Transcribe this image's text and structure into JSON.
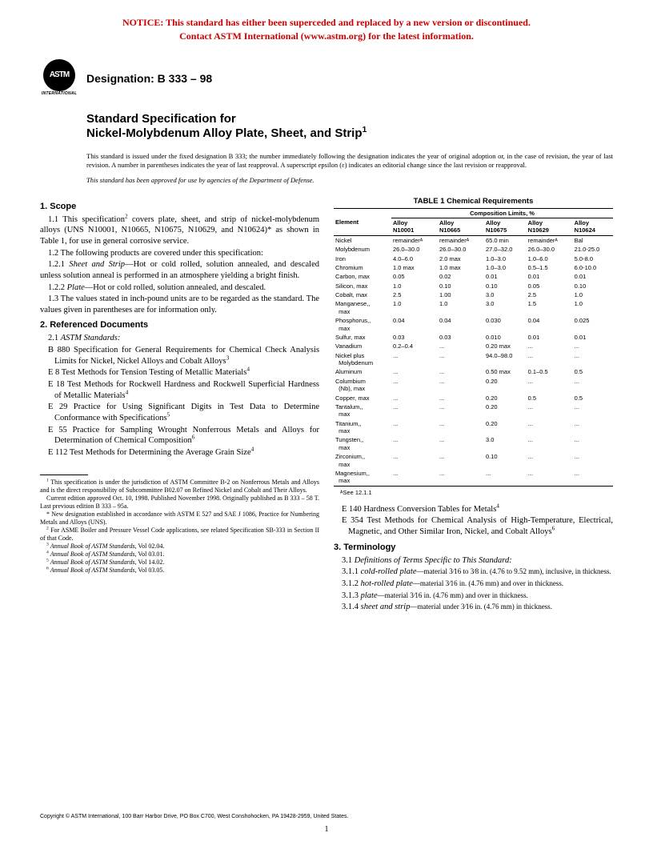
{
  "notice": {
    "line1": "NOTICE: This standard has either been superceded and replaced by a new version or discontinued.",
    "line2": "Contact ASTM International (www.astm.org) for the latest information."
  },
  "logo": {
    "abbr": "ASTM",
    "subtext": "INTERNATIONAL"
  },
  "designation": "Designation: B 333 – 98",
  "title": {
    "lead": "Standard Specification for",
    "main": "Nickel-Molybdenum Alloy Plate, Sheet, and Strip",
    "sup": "1"
  },
  "issuance": "This standard is issued under the fixed designation B 333; the number immediately following the designation indicates the year of original adoption or, in the case of revision, the year of last revision. A number in parentheses indicates the year of last reapproval. A superscript epsilon (ε) indicates an editorial change since the last revision or reapproval.",
  "dod": "This standard has been approved for use by agencies of the Department of Defense.",
  "left": {
    "s1_head": "1.  Scope",
    "s1_1a": "1.1 This specification",
    "s1_1_sup": "2",
    "s1_1b": " covers plate, sheet, and strip of nickel-molybdenum alloys (UNS N10001, N10665, N10675, N10629, and N10624)* as shown in Table 1, for use in general corrosive service.",
    "s1_2": "1.2 The following products are covered under this specification:",
    "s1_2_1_lead": "1.2.1 ",
    "s1_2_1_em": "Sheet and Strip",
    "s1_2_1_body": "—Hot or cold rolled, solution annealed, and descaled unless solution anneal is performed in an atmosphere yielding a bright finish.",
    "s1_2_2_lead": "1.2.2 ",
    "s1_2_2_em": "Plate",
    "s1_2_2_body": "—Hot or cold rolled, solution annealed, and descaled.",
    "s1_3": "1.3 The values stated in inch-pound units are to be regarded as the standard. The values given in parentheses are for information only.",
    "s2_head": "2.  Referenced Documents",
    "s2_1": "2.1 ",
    "s2_1_em": "ASTM Standards:",
    "refs": [
      {
        "t": "B 880  Specification for General Requirements for Chemical Check Analysis Limits for Nickel, Nickel Alloys and Cobalt Alloys",
        "s": "3"
      },
      {
        "t": "E 8  Test Methods for Tension Testing of Metallic Materials",
        "s": "4"
      },
      {
        "t": "E 18  Test Methods for Rockwell Hardness and Rockwell Superficial Hardness of Metallic Materials",
        "s": "4"
      },
      {
        "t": "E 29  Practice for Using Significant Digits in Test Data to Determine Conformance with Specifications",
        "s": "5"
      },
      {
        "t": "E 55  Practice for Sampling Wrought Nonferrous Metals and Alloys for Determination of Chemical Composition",
        "s": "6"
      },
      {
        "t": "E 112 Test Methods for Determining the Average Grain Size",
        "s": "4"
      }
    ]
  },
  "footnotes": {
    "f1": "This specification is under the jurisdiction of ASTM Committee B-2 on Nonferrous Metals and Alloys and is the direct responsibility of Subcommittee B02.07 on Refined Nickel and Cobalt and Their Alloys.",
    "f1b": "Current edition approved Oct. 10, 1998. Published November 1998. Originally published as B 333 – 58 T. Last previous edition B 333 – 95a.",
    "fstar": "* New designation established in accordance with ASTM E 527 and SAE J 1086, Practice for Numbering Metals and Alloys (UNS).",
    "f2": "For ASME Boiler and Pressure Vessel Code applications, see related Specification SB-333 in Section II of that Code.",
    "f3": "Annual Book of ASTM Standards, Vol 02.04.",
    "f4": "Annual Book of ASTM Standards, Vol 03.01.",
    "f5": "Annual Book of ASTM Standards, Vol 14.02.",
    "f6": "Annual Book of ASTM Standards, Vol 03.05.",
    "f3_em": "Annual Book of ASTM Standards",
    "f3_tail": ", Vol 02.04.",
    "f4_tail": ", Vol 03.01.",
    "f5_tail": ", Vol 14.02.",
    "f6_tail": ", Vol 03.05."
  },
  "table": {
    "title": "TABLE 1  Chemical Requirements",
    "spanner": "Composition Limits, %",
    "col0": "Element",
    "alloys": [
      "Alloy N10001",
      "Alloy N10665",
      "Alloy N10675",
      "Alloy N10629",
      "Alloy N10624"
    ],
    "rows": [
      {
        "e": "Nickel",
        "v": [
          "remainderᴬ",
          "remainderᴬ",
          "65.0 min",
          "remainderᴬ",
          "Bal"
        ]
      },
      {
        "e": "Molybdenum",
        "v": [
          "26.0–30.0",
          "26.0–30.0",
          "27.0–32.0",
          "26.0–30.0",
          "21.0-25.0"
        ]
      },
      {
        "e": "Iron",
        "v": [
          "4.0–6.0",
          "2.0 max",
          "1.0–3.0",
          "1.0–6.0",
          "5.0-8.0"
        ]
      },
      {
        "e": "Chromium",
        "v": [
          "1.0 max",
          "1.0 max",
          "1.0–3.0",
          "0.5–1.5",
          "6.0-10.0"
        ]
      },
      {
        "e": "Carbon, max",
        "v": [
          "0.05",
          "0.02",
          "0.01",
          "0.01",
          "0.01"
        ]
      },
      {
        "e": "Silicon, max",
        "v": [
          "1.0",
          "0.10",
          "0.10",
          "0.05",
          "0.10"
        ]
      },
      {
        "e": "Cobalt, max",
        "v": [
          "2.5",
          "1.00",
          "3.0",
          "2.5",
          "1.0"
        ]
      },
      {
        "e": "Manganese, max",
        "v": [
          "1.0",
          "1.0",
          "3.0",
          "1.5",
          "1.0"
        ]
      },
      {
        "e": "Phosphorus, max",
        "v": [
          "0.04",
          "0.04",
          "0.030",
          "0.04",
          "0.025"
        ]
      },
      {
        "e": "Sulfur, max",
        "v": [
          "0.03",
          "0.03",
          "0.010",
          "0.01",
          "0.01"
        ]
      },
      {
        "e": "Vanadium",
        "v": [
          "0.2–0.4",
          "...",
          "0.20 max",
          "...",
          "..."
        ]
      },
      {
        "e": "Nickel plus Molybdenum",
        "v": [
          "...",
          "...",
          "94.0–98.0",
          "...",
          "..."
        ]
      },
      {
        "e": "Aluminum",
        "v": [
          "...",
          "...",
          "0.50 max",
          "0.1–0.5",
          "0.5"
        ]
      },
      {
        "e": "Columbium (Nb), max",
        "v": [
          "...",
          "...",
          "0.20",
          "...",
          "..."
        ]
      },
      {
        "e": "Copper, max",
        "v": [
          "...",
          "...",
          "0.20",
          "0.5",
          "0.5"
        ]
      },
      {
        "e": "Tantalum, max",
        "v": [
          "...",
          "...",
          "0.20",
          "...",
          "..."
        ]
      },
      {
        "e": "Titanium, max",
        "v": [
          "...",
          "...",
          "0.20",
          "...",
          "..."
        ]
      },
      {
        "e": "Tungsten, max",
        "v": [
          "...",
          "...",
          "3.0",
          "...",
          "..."
        ]
      },
      {
        "e": "Zirconium, max",
        "v": [
          "...",
          "...",
          "0.10",
          "...",
          "..."
        ]
      },
      {
        "e": "Magnesium, max",
        "v": [
          "...",
          "...",
          "...",
          "...",
          "..."
        ]
      }
    ],
    "note": "ᴬSee 12.1.1"
  },
  "right": {
    "refs2": [
      {
        "t": "E 140  Hardness Conversion Tables for Metals",
        "s": "4"
      },
      {
        "t": "E 354  Test Methods for Chemical Analysis of High-Temperature, Electrical, Magnetic, and Other Similar Iron, Nickel, and Cobalt Alloys",
        "s": "6"
      }
    ],
    "s3_head": "3.  Terminology",
    "s3_1": "3.1 ",
    "s3_1_em": "Definitions of Terms Specific to This Standard:",
    "d1_lead": "3.1.1 ",
    "d1_em": "cold-rolled plate",
    "d1_body": "—material 3⁄16 to 3⁄8 in. (4.76 to 9.52 mm), inclusive, in thickness.",
    "d2_lead": "3.1.2 ",
    "d2_em": "hot-rolled plate",
    "d2_body": "—material 3⁄16 in. (4.76 mm) and over in thickness.",
    "d3_lead": "3.1.3 ",
    "d3_em": "plate",
    "d3_body": "—material 3⁄16 in. (4.76 mm) and over in thickness.",
    "d4_lead": "3.1.4 ",
    "d4_em": "sheet and strip",
    "d4_body": "—material under 3⁄16 in. (4.76 mm) in thickness."
  },
  "copyright": "Copyright © ASTM International, 100 Barr Harbor Drive, PO Box C700, West Conshohocken, PA 19428-2959, United States.",
  "pagenum": "1"
}
